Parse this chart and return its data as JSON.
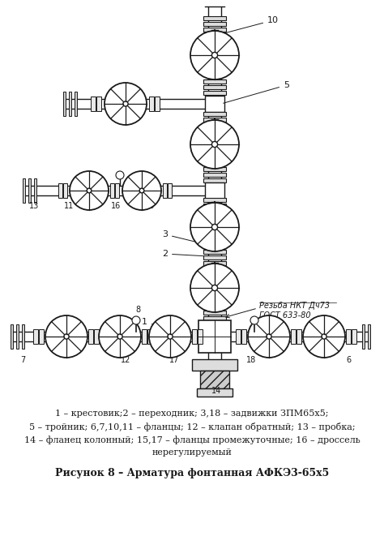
{
  "background_color": "#ffffff",
  "fig_width": 4.74,
  "fig_height": 6.77,
  "dpi": 100,
  "lc": "#1a1a1a",
  "lw": 1.0,
  "caption_line1": "1 – крестовик;2 – переходник; 3,18 – задвижки ЗПМ65х5;",
  "caption_line2": "5 – тройник; 6,7,10,11 – фланцы; 12 – клапан обратный; 13 – пробка;",
  "caption_line3": "14 – фланец колонный; 15,17 – фланцы промежуточные; 16 – дроссель",
  "caption_line4": "нерегулируемый",
  "figure_caption": "Рисунок 8 – Арматура фонтанная АФКЭ3-65х5",
  "rezba_line1": "Резьба НКТ Дч73",
  "rezba_line2": "ГОСТ 633-80"
}
